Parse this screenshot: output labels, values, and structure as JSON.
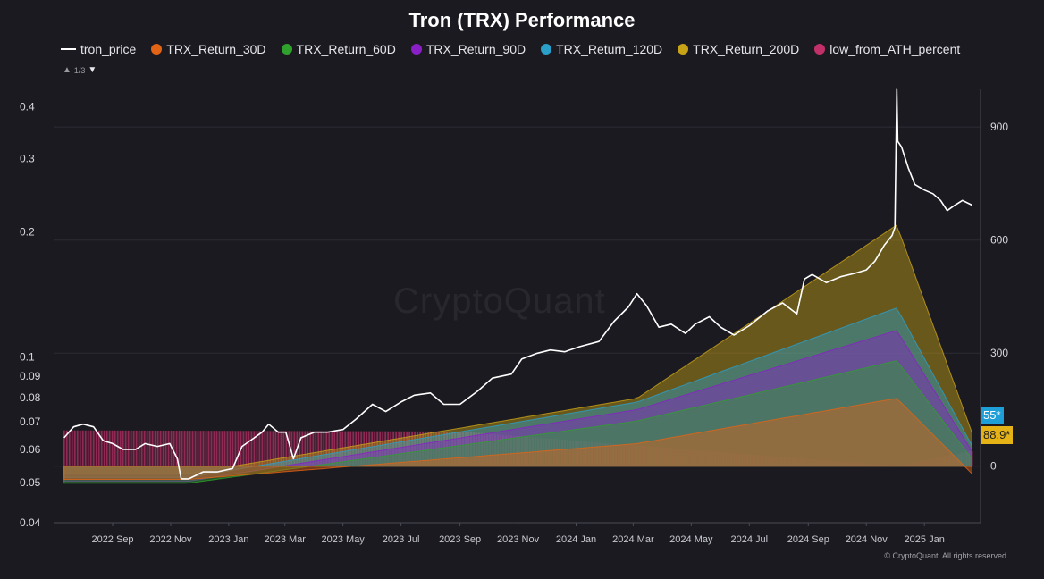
{
  "chart_data": {
    "type": "line",
    "title": "Tron (TRX) Performance",
    "legend": {
      "placement": "top-left",
      "pager": "1/3",
      "entries": [
        {
          "name": "tron_price",
          "color": "#ffffff",
          "shape": "line"
        },
        {
          "name": "TRX_Return_30D",
          "color": "#e36414",
          "shape": "dot"
        },
        {
          "name": "TRX_Return_60D",
          "color": "#2fa12c",
          "shape": "dot"
        },
        {
          "name": "TRX_Return_90D",
          "color": "#8a1fc8",
          "shape": "dot"
        },
        {
          "name": "TRX_Return_120D",
          "color": "#2a9fc9",
          "shape": "dot"
        },
        {
          "name": "TRX_Return_200D",
          "color": "#c9a316",
          "shape": "dot"
        },
        {
          "name": "low_from_ATH_percent",
          "color": "#c2306a",
          "shape": "dot"
        }
      ]
    },
    "left_axis": {
      "scale": "log",
      "range": [
        0.04,
        0.44
      ],
      "ticks": [
        "0.04",
        "0.05",
        "0.06",
        "0.07",
        "0.08",
        "0.09",
        "0.1",
        "0.2",
        "0.3",
        "0.4"
      ]
    },
    "right_axis": {
      "scale": "linear",
      "range": [
        -150,
        1000
      ],
      "ticks": [
        "0",
        "300",
        "600",
        "900"
      ],
      "grid": true
    },
    "x_axis": {
      "range": [
        "2022-07-01",
        "2025-03-01"
      ],
      "ticks": [
        {
          "label": "2022 Sep",
          "date": "2022-09-01"
        },
        {
          "label": "2022 Nov",
          "date": "2022-11-01"
        },
        {
          "label": "2023 Jan",
          "date": "2023-01-01"
        },
        {
          "label": "2023 Mar",
          "date": "2023-03-01"
        },
        {
          "label": "2023 May",
          "date": "2023-05-01"
        },
        {
          "label": "2023 Jul",
          "date": "2023-07-01"
        },
        {
          "label": "2023 Sep",
          "date": "2023-09-01"
        },
        {
          "label": "2023 Nov",
          "date": "2023-11-01"
        },
        {
          "label": "2024 Jan",
          "date": "2024-01-01"
        },
        {
          "label": "2024 Mar",
          "date": "2024-03-01"
        },
        {
          "label": "2024 May",
          "date": "2024-05-01"
        },
        {
          "label": "2024 Jul",
          "date": "2024-07-01"
        },
        {
          "label": "2024 Sep",
          "date": "2024-09-01"
        },
        {
          "label": "2024 Nov",
          "date": "2024-11-01"
        },
        {
          "label": "2025 Jan",
          "date": "2025-01-01"
        }
      ]
    },
    "series": [
      {
        "name": "tron_price",
        "axis": "left",
        "points": [
          [
            "2022-07-12",
            0.064
          ],
          [
            "2022-07-22",
            0.068
          ],
          [
            "2022-08-01",
            0.069
          ],
          [
            "2022-08-12",
            0.068
          ],
          [
            "2022-08-22",
            0.063
          ],
          [
            "2022-09-01",
            0.062
          ],
          [
            "2022-09-12",
            0.06
          ],
          [
            "2022-09-25",
            0.06
          ],
          [
            "2022-10-05",
            0.062
          ],
          [
            "2022-10-18",
            0.061
          ],
          [
            "2022-10-31",
            0.062
          ],
          [
            "2022-11-08",
            0.057
          ],
          [
            "2022-11-12",
            0.051
          ],
          [
            "2022-11-20",
            0.051
          ],
          [
            "2022-12-05",
            0.053
          ],
          [
            "2022-12-20",
            0.053
          ],
          [
            "2023-01-05",
            0.054
          ],
          [
            "2023-01-15",
            0.061
          ],
          [
            "2023-01-28",
            0.064
          ],
          [
            "2023-02-05",
            0.066
          ],
          [
            "2023-02-12",
            0.069
          ],
          [
            "2023-02-22",
            0.066
          ],
          [
            "2023-03-02",
            0.066
          ],
          [
            "2023-03-10",
            0.057
          ],
          [
            "2023-03-18",
            0.064
          ],
          [
            "2023-04-01",
            0.066
          ],
          [
            "2023-04-15",
            0.066
          ],
          [
            "2023-05-01",
            0.067
          ],
          [
            "2023-05-15",
            0.071
          ],
          [
            "2023-06-01",
            0.077
          ],
          [
            "2023-06-15",
            0.074
          ],
          [
            "2023-07-01",
            0.078
          ],
          [
            "2023-07-15",
            0.081
          ],
          [
            "2023-08-01",
            0.082
          ],
          [
            "2023-08-15",
            0.077
          ],
          [
            "2023-09-01",
            0.077
          ],
          [
            "2023-09-20",
            0.083
          ],
          [
            "2023-10-05",
            0.089
          ],
          [
            "2023-10-25",
            0.091
          ],
          [
            "2023-11-05",
            0.099
          ],
          [
            "2023-11-20",
            0.102
          ],
          [
            "2023-12-05",
            0.104
          ],
          [
            "2023-12-20",
            0.103
          ],
          [
            "2024-01-05",
            0.106
          ],
          [
            "2024-01-25",
            0.109
          ],
          [
            "2024-02-10",
            0.122
          ],
          [
            "2024-02-25",
            0.132
          ],
          [
            "2024-03-05",
            0.142
          ],
          [
            "2024-03-15",
            0.133
          ],
          [
            "2024-03-28",
            0.118
          ],
          [
            "2024-04-10",
            0.12
          ],
          [
            "2024-04-25",
            0.114
          ],
          [
            "2024-05-05",
            0.12
          ],
          [
            "2024-05-20",
            0.125
          ],
          [
            "2024-06-01",
            0.118
          ],
          [
            "2024-06-15",
            0.113
          ],
          [
            "2024-07-01",
            0.119
          ],
          [
            "2024-07-20",
            0.129
          ],
          [
            "2024-08-05",
            0.135
          ],
          [
            "2024-08-20",
            0.127
          ],
          [
            "2024-08-28",
            0.154
          ],
          [
            "2024-09-05",
            0.158
          ],
          [
            "2024-09-20",
            0.151
          ],
          [
            "2024-10-05",
            0.156
          ],
          [
            "2024-10-20",
            0.159
          ],
          [
            "2024-11-01",
            0.162
          ],
          [
            "2024-11-10",
            0.17
          ],
          [
            "2024-11-20",
            0.186
          ],
          [
            "2024-11-28",
            0.196
          ],
          [
            "2024-12-01",
            0.205
          ],
          [
            "2024-12-03",
            0.44
          ],
          [
            "2024-12-04",
            0.33
          ],
          [
            "2024-12-08",
            0.32
          ],
          [
            "2024-12-15",
            0.285
          ],
          [
            "2024-12-22",
            0.26
          ],
          [
            "2025-01-01",
            0.252
          ],
          [
            "2025-01-10",
            0.247
          ],
          [
            "2025-01-18",
            0.238
          ],
          [
            "2025-01-25",
            0.225
          ],
          [
            "2025-02-01",
            0.231
          ],
          [
            "2025-02-10",
            0.238
          ],
          [
            "2025-02-20",
            0.232
          ]
        ]
      },
      {
        "name": "low_from_ATH_percent",
        "axis": "right",
        "points": [
          [
            "2022-07-12",
            95
          ],
          [
            "2023-09-01",
            92
          ],
          [
            "2024-12-03",
            0
          ],
          [
            "2025-02-20",
            40
          ]
        ]
      },
      {
        "name": "TRX_Return_30D",
        "axis": "right",
        "points": [
          [
            "2022-11-20",
            -35
          ],
          [
            "2024-03-05",
            60
          ],
          [
            "2024-12-03",
            180
          ],
          [
            "2025-02-20",
            -20
          ]
        ]
      },
      {
        "name": "TRX_Return_60D",
        "axis": "right",
        "points": [
          [
            "2022-11-20",
            -45
          ],
          [
            "2024-03-05",
            120
          ],
          [
            "2024-12-03",
            280
          ],
          [
            "2025-02-20",
            20
          ]
        ]
      },
      {
        "name": "TRX_Return_90D",
        "axis": "right",
        "points": [
          [
            "2022-11-20",
            -40
          ],
          [
            "2024-03-05",
            150
          ],
          [
            "2024-12-03",
            360
          ],
          [
            "2025-02-20",
            40
          ]
        ]
      },
      {
        "name": "TRX_Return_120D",
        "axis": "right",
        "points": [
          [
            "2022-11-20",
            -30
          ],
          [
            "2024-03-05",
            170
          ],
          [
            "2024-12-03",
            420
          ],
          [
            "2025-02-20",
            55
          ]
        ]
      },
      {
        "name": "TRX_Return_200D",
        "axis": "right",
        "points": [
          [
            "2022-11-20",
            -20
          ],
          [
            "2024-03-05",
            180
          ],
          [
            "2024-12-03",
            640
          ],
          [
            "2025-02-20",
            88.9
          ]
        ]
      }
    ],
    "last_value_tags": [
      {
        "series": "TRX_Return_120D",
        "label": "55*",
        "color": "#1f9fd8"
      },
      {
        "series": "TRX_Return_200D",
        "label": "88.9*",
        "color": "#e6b316"
      }
    ],
    "watermark": "CryptoQuant",
    "copyright": "© CryptoQuant. All rights reserved"
  }
}
